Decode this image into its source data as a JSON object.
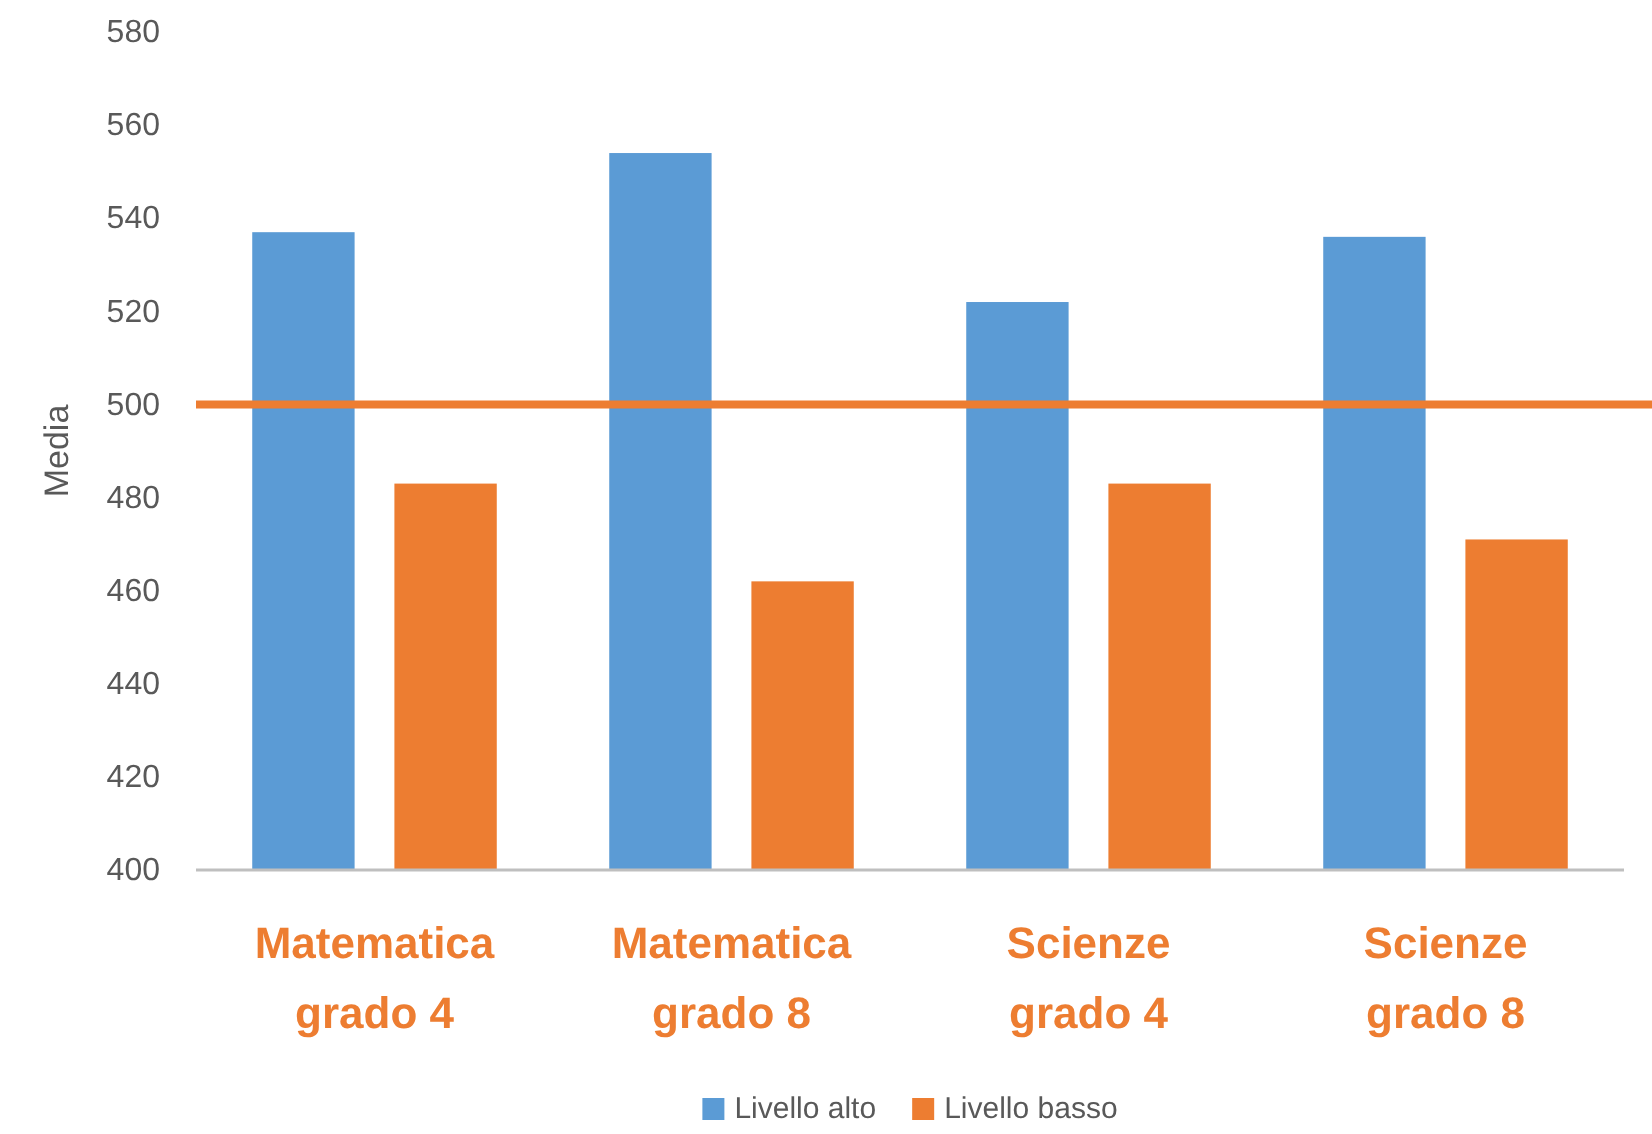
{
  "chart_data": {
    "type": "bar",
    "ylabel": "Media",
    "categories": [
      "Matematica grado 4",
      "Matematica grado 8",
      "Scienze grado 4",
      "Scienze grado 8"
    ],
    "series": [
      {
        "name": "Livello alto",
        "color": "#5b9bd5",
        "values": [
          537,
          554,
          522,
          536
        ]
      },
      {
        "name": "Livello basso",
        "color": "#ed7d31",
        "values": [
          483,
          462,
          483,
          471
        ]
      }
    ],
    "ylim": [
      400,
      580
    ],
    "yticks": [
      400,
      420,
      440,
      460,
      480,
      500,
      520,
      540,
      560,
      580
    ],
    "grid": false,
    "legend": "bottom",
    "ref_lines": [
      {
        "axis": "y",
        "value": 500,
        "color": "#ed7d31",
        "line_style": "solid"
      }
    ]
  }
}
